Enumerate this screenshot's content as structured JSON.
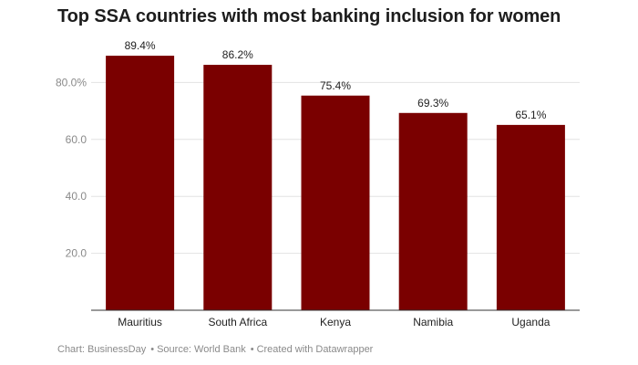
{
  "colors": {
    "bar": "#7a0000",
    "grid": "#e2e2e2",
    "axis": "#333333"
  },
  "chart_data": {
    "type": "bar",
    "title": "Top SSA countries with most banking inclusion for women",
    "categories": [
      "Mauritius",
      "South Africa",
      "Kenya",
      "Namibia",
      "Uganda"
    ],
    "values": [
      89.4,
      86.2,
      75.4,
      69.3,
      65.1
    ],
    "value_labels": [
      "89.4%",
      "86.2%",
      "75.4%",
      "69.3%",
      "65.1%"
    ],
    "xlabel": "",
    "ylabel": "",
    "ylim": [
      0,
      100
    ],
    "yticks": [
      20,
      40,
      60,
      80
    ],
    "ytick_labels": [
      "20.0",
      "40.0",
      "60.0",
      "80.0%"
    ],
    "grid": true
  },
  "footer": {
    "chart_credit": "Chart: BusinessDay",
    "source": "Source: World Bank",
    "created_with": "Created with Datawrapper"
  }
}
